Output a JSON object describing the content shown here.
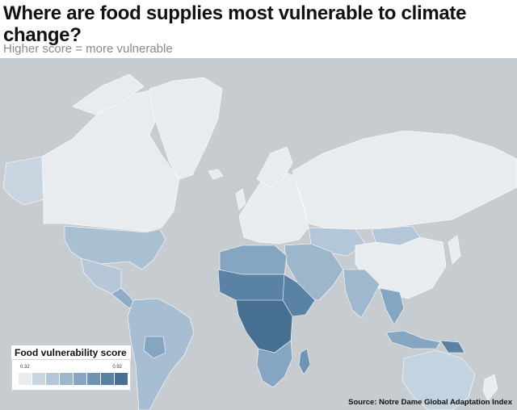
{
  "header": {
    "title": "Where are food supplies most vulnerable to climate change?",
    "subtitle": "Higher score = more vulnerable"
  },
  "legend": {
    "title": "Food vulnerability score",
    "min": "0.32",
    "max": "0.92",
    "colors": [
      "#e8ecef",
      "#c9d6e1",
      "#b3c7d8",
      "#9cb6cc",
      "#86a5c0",
      "#6f93b3",
      "#5a82a5",
      "#476f91"
    ]
  },
  "map": {
    "ocean_color": "#c7ccd0",
    "land_colors": {
      "greenland": "#e8ecef",
      "north_america_north": "#e8ecef",
      "usa": "#a9bfd2",
      "mexico": "#b6c8d8",
      "central_america": "#8fabc6",
      "south_america": "#a6bdd2",
      "europe": "#e8ecef",
      "russia": "#e8ecef",
      "china": "#e8ecef",
      "mongolia_central_asia": "#b3c7d8",
      "middle_east": "#9cb6cc",
      "india": "#9fb8ce",
      "southeast_asia": "#86a5c0",
      "north_africa": "#86a5c0",
      "sahel": "#5a82a5",
      "central_africa": "#476f91",
      "east_africa": "#5a82a5",
      "southern_africa": "#86a5c0",
      "madagascar": "#6f93b3",
      "australia": "#c4d3e0",
      "new_zealand": "#e8ecef",
      "papua_new_guinea": "#5a82a5",
      "japan": "#e8ecef"
    }
  },
  "source": "Source: Notre Dame Global Adaptation Index"
}
